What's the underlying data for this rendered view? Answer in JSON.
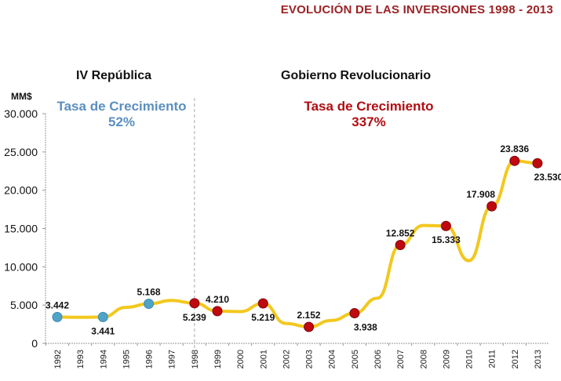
{
  "header": {
    "title": "EVOLUCIÓN DE LAS INVERSIONES 1998 - 2013"
  },
  "eras": [
    {
      "name": "IV República",
      "rate_label": "Tasa de Crecimiento",
      "rate_value": "52%",
      "color": "#5b8fc0"
    },
    {
      "name": "Gobierno Revolucionario",
      "rate_label": "Tasa de Crecimiento",
      "rate_value": "337%",
      "color": "#b00d12"
    }
  ],
  "chart_data": {
    "type": "line",
    "title": "EVOLUCIÓN DE LAS INVERSIONES 1998 - 2013",
    "xlabel": "",
    "ylabel": "MM$",
    "ylim": [
      0,
      30000
    ],
    "yticks": [
      0,
      5000,
      10000,
      15000,
      20000,
      25000,
      30000
    ],
    "ytick_labels": [
      "0",
      "5.000",
      "10.000",
      "15.000",
      "20.000",
      "25.000",
      "30.000"
    ],
    "categories": [
      "1992",
      "1993",
      "1994",
      "1995",
      "1996",
      "1997",
      "1998",
      "1999",
      "2000",
      "2001",
      "2002",
      "2003",
      "2004",
      "2005",
      "2006",
      "2007",
      "2008",
      "2009",
      "2010",
      "2011",
      "2012",
      "2013"
    ],
    "grid": false,
    "divider_after": "1998",
    "series": [
      {
        "name": "Inversiones",
        "line_color": "#f2c81e",
        "values": [
          3442,
          3400,
          3441,
          4700,
          5168,
          5600,
          5239,
          4210,
          4150,
          5219,
          2600,
          2152,
          3000,
          3938,
          5900,
          12852,
          15400,
          15333,
          10800,
          17908,
          23836,
          23530
        ]
      }
    ],
    "markers": [
      {
        "year": "1992",
        "value": 3442,
        "label": "3.442",
        "color": "#4fa3c7",
        "label_pos": "above"
      },
      {
        "year": "1994",
        "value": 3441,
        "label": "3.441",
        "color": "#4fa3c7",
        "label_pos": "below"
      },
      {
        "year": "1996",
        "value": 5168,
        "label": "5.168",
        "color": "#4fa3c7",
        "label_pos": "above"
      },
      {
        "year": "1998",
        "value": 5239,
        "label": "5.239",
        "color": "#c0080f",
        "label_pos": "below"
      },
      {
        "year": "1999",
        "value": 4210,
        "label": "4.210",
        "color": "#c0080f",
        "label_pos": "above"
      },
      {
        "year": "2001",
        "value": 5219,
        "label": "5.219",
        "color": "#c0080f",
        "label_pos": "below"
      },
      {
        "year": "2003",
        "value": 2152,
        "label": "2.152",
        "color": "#c0080f",
        "label_pos": "above"
      },
      {
        "year": "2005",
        "value": 3938,
        "label": "3.938",
        "color": "#c0080f",
        "label_pos": "below-right"
      },
      {
        "year": "2007",
        "value": 12852,
        "label": "12.852",
        "color": "#c0080f",
        "label_pos": "above"
      },
      {
        "year": "2009",
        "value": 15333,
        "label": "15.333",
        "color": "#c0080f",
        "label_pos": "below"
      },
      {
        "year": "2011",
        "value": 17908,
        "label": "17.908",
        "color": "#c0080f",
        "label_pos": "above-left"
      },
      {
        "year": "2012",
        "value": 23836,
        "label": "23.836",
        "color": "#c0080f",
        "label_pos": "above"
      },
      {
        "year": "2013",
        "value": 23530,
        "label": "23.530",
        "color": "#c0080f",
        "label_pos": "below-right"
      }
    ]
  }
}
